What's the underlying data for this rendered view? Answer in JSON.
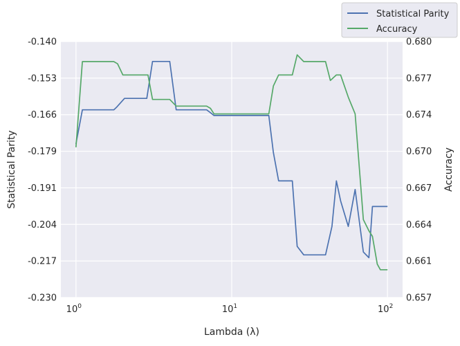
{
  "chart_data": {
    "type": "line",
    "xlabel": "Lambda (λ)",
    "ylabel_left": "Statistical Parity",
    "ylabel_right": "Accuracy",
    "x_scale": "log",
    "xlim": [
      0.8,
      125
    ],
    "x_ticks": [
      {
        "value": 1,
        "base": "10",
        "exp": "0"
      },
      {
        "value": 10,
        "base": "10",
        "exp": "1"
      },
      {
        "value": 100,
        "base": "10",
        "exp": "2"
      }
    ],
    "ylim_left": [
      -0.23,
      -0.14
    ],
    "y_ticks_left": [
      "-0.140",
      "-0.153",
      "-0.166",
      "-0.179",
      "-0.191",
      "-0.204",
      "-0.217",
      "-0.230"
    ],
    "ylim_right": [
      0.657,
      0.68
    ],
    "y_ticks_right": [
      "0.680",
      "0.677",
      "0.674",
      "0.670",
      "0.667",
      "0.664",
      "0.661",
      "0.657"
    ],
    "grid": true,
    "legend_position": "top-right",
    "series": [
      {
        "name": "Statistical Parity",
        "axis": "left",
        "color": "#4c72b0",
        "x": [
          1.0,
          1.1,
          1.65,
          1.75,
          1.83,
          2.05,
          2.5,
          2.85,
          3.1,
          3.4,
          4.0,
          4.4,
          5.0,
          6.0,
          6.9,
          7.3,
          7.7,
          8.6,
          9.4,
          10.5,
          12.0,
          14.1,
          16.0,
          17.3,
          18.5,
          20.0,
          22.0,
          24.5,
          26.3,
          29.0,
          33.3,
          40.0,
          44.0,
          47.0,
          50.0,
          56.0,
          62.0,
          70.0,
          76.0,
          80.0,
          86.0,
          90.0,
          95.0,
          100.0
        ],
        "y": [
          -0.176,
          -0.164,
          -0.164,
          -0.164,
          -0.163,
          -0.16,
          -0.16,
          -0.16,
          -0.147,
          -0.147,
          -0.147,
          -0.164,
          -0.164,
          -0.164,
          -0.164,
          -0.165,
          -0.166,
          -0.166,
          -0.166,
          -0.166,
          -0.166,
          -0.166,
          -0.166,
          -0.166,
          -0.179,
          -0.189,
          -0.189,
          -0.189,
          -0.212,
          -0.215,
          -0.215,
          -0.215,
          -0.205,
          -0.189,
          -0.196,
          -0.205,
          -0.192,
          -0.214,
          -0.216,
          -0.198,
          -0.198,
          -0.198,
          -0.198,
          -0.198
        ]
      },
      {
        "name": "Accuracy",
        "axis": "right",
        "color": "#55a868",
        "x": [
          1.0,
          1.1,
          1.5,
          1.75,
          1.85,
          2.0,
          2.5,
          2.9,
          3.1,
          3.5,
          4.0,
          4.4,
          5.0,
          6.0,
          6.9,
          7.3,
          7.7,
          8.6,
          9.4,
          10.5,
          12.0,
          14.1,
          16.0,
          17.3,
          18.5,
          20.0,
          22.0,
          24.5,
          26.3,
          29.0,
          33.3,
          40.0,
          43.0,
          47.0,
          50.0,
          56.0,
          62.0,
          70.0,
          76.0,
          80.0,
          86.0,
          90.0,
          95.0,
          100.0
        ],
        "y": [
          0.6705,
          0.6782,
          0.6782,
          0.6782,
          0.678,
          0.677,
          0.677,
          0.677,
          0.6748,
          0.6748,
          0.6748,
          0.6742,
          0.6742,
          0.6742,
          0.6742,
          0.674,
          0.6735,
          0.6735,
          0.6735,
          0.6735,
          0.6735,
          0.6735,
          0.6735,
          0.6735,
          0.676,
          0.677,
          0.677,
          0.677,
          0.6788,
          0.6782,
          0.6782,
          0.6782,
          0.6765,
          0.677,
          0.677,
          0.675,
          0.6735,
          0.664,
          0.663,
          0.6625,
          0.66,
          0.6595,
          0.6595,
          0.6595
        ]
      }
    ]
  }
}
